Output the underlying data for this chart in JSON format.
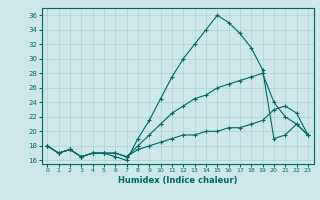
{
  "xlabel": "Humidex (Indice chaleur)",
  "background_color": "#cce8e8",
  "line_color": "#006666",
  "grid_color": "#aad4d4",
  "xlim": [
    -0.5,
    23.5
  ],
  "ylim": [
    15.5,
    37.0
  ],
  "yticks": [
    16,
    18,
    20,
    22,
    24,
    26,
    28,
    30,
    32,
    34,
    36
  ],
  "xticks": [
    0,
    1,
    2,
    3,
    4,
    5,
    6,
    7,
    8,
    9,
    10,
    11,
    12,
    13,
    14,
    15,
    16,
    17,
    18,
    19,
    20,
    21,
    22,
    23
  ],
  "series": [
    [
      18.0,
      17.0,
      17.5,
      16.5,
      17.0,
      17.0,
      16.5,
      16.0,
      19.0,
      21.5,
      24.5,
      27.5,
      30.0,
      32.0,
      34.0,
      36.0,
      35.0,
      33.5,
      31.5,
      28.5,
      19.0,
      19.5,
      21.0,
      19.5
    ],
    [
      18.0,
      17.0,
      17.5,
      16.5,
      17.0,
      17.0,
      17.0,
      16.5,
      18.0,
      19.5,
      21.0,
      22.5,
      23.5,
      24.5,
      25.0,
      26.0,
      26.5,
      27.0,
      27.5,
      28.0,
      24.0,
      22.0,
      21.0,
      19.5
    ],
    [
      18.0,
      17.0,
      17.5,
      16.5,
      17.0,
      17.0,
      17.0,
      16.5,
      17.5,
      18.0,
      18.5,
      19.0,
      19.5,
      19.5,
      20.0,
      20.0,
      20.5,
      20.5,
      21.0,
      21.5,
      23.0,
      23.5,
      22.5,
      19.5
    ]
  ]
}
